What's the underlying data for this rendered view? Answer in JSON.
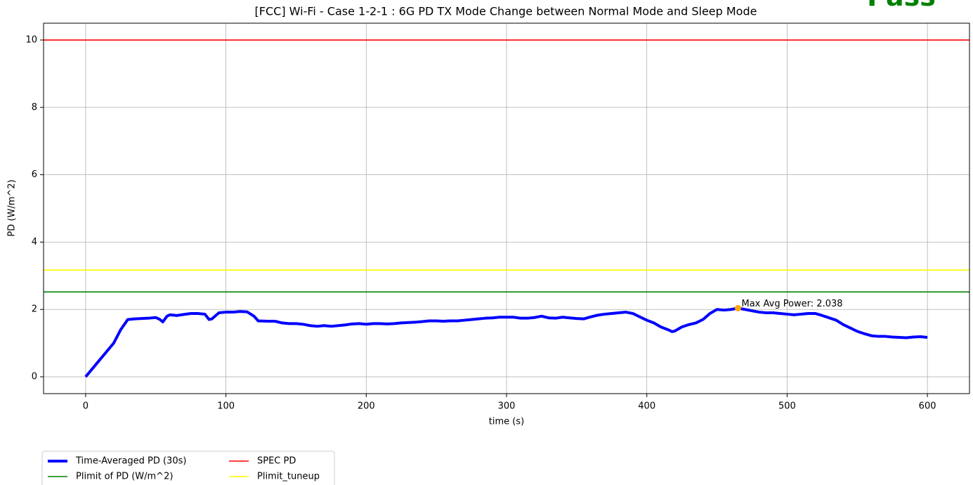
{
  "chart_data": {
    "type": "line",
    "title": "[FCC] Wi-Fi - Case 1-2-1 : 6G PD TX Mode Change between Normal Mode and Sleep Mode",
    "status": {
      "text": "Pass",
      "color": "#008000"
    },
    "xlabel": "time (s)",
    "ylabel": "PD (W/m^2)",
    "x": [
      0,
      5,
      10,
      15,
      20,
      25,
      30,
      35,
      40,
      45,
      50,
      53,
      55,
      58,
      60,
      65,
      70,
      75,
      80,
      85,
      88,
      90,
      95,
      100,
      105,
      110,
      115,
      120,
      123,
      130,
      135,
      140,
      145,
      150,
      155,
      160,
      165,
      170,
      175,
      180,
      185,
      190,
      195,
      200,
      205,
      210,
      215,
      220,
      225,
      230,
      235,
      240,
      245,
      250,
      255,
      260,
      265,
      270,
      275,
      280,
      285,
      290,
      295,
      300,
      305,
      310,
      315,
      320,
      325,
      330,
      335,
      340,
      345,
      350,
      355,
      360,
      365,
      370,
      375,
      380,
      385,
      390,
      395,
      400,
      405,
      410,
      415,
      418,
      420,
      425,
      430,
      435,
      440,
      445,
      450,
      455,
      460,
      465,
      470,
      475,
      480,
      485,
      490,
      495,
      500,
      505,
      510,
      515,
      520,
      525,
      530,
      535,
      540,
      545,
      550,
      555,
      560,
      565,
      570,
      575,
      580,
      585,
      590,
      595,
      600
    ],
    "series": [
      {
        "name": "Time-Averaged PD (30s)",
        "color": "#0000ff",
        "values": [
          0,
          0.25,
          0.5,
          0.75,
          1.0,
          1.4,
          1.7,
          1.72,
          1.73,
          1.74,
          1.76,
          1.7,
          1.63,
          1.8,
          1.84,
          1.82,
          1.85,
          1.88,
          1.88,
          1.86,
          1.7,
          1.72,
          1.9,
          1.92,
          1.92,
          1.94,
          1.93,
          1.8,
          1.66,
          1.65,
          1.65,
          1.6,
          1.58,
          1.58,
          1.56,
          1.52,
          1.5,
          1.52,
          1.5,
          1.52,
          1.54,
          1.57,
          1.58,
          1.56,
          1.58,
          1.58,
          1.57,
          1.58,
          1.6,
          1.61,
          1.62,
          1.64,
          1.66,
          1.66,
          1.65,
          1.66,
          1.66,
          1.68,
          1.7,
          1.72,
          1.74,
          1.75,
          1.77,
          1.77,
          1.77,
          1.74,
          1.74,
          1.76,
          1.8,
          1.75,
          1.74,
          1.77,
          1.75,
          1.73,
          1.72,
          1.78,
          1.83,
          1.86,
          1.88,
          1.9,
          1.92,
          1.88,
          1.78,
          1.68,
          1.6,
          1.48,
          1.4,
          1.34,
          1.36,
          1.48,
          1.55,
          1.6,
          1.7,
          1.88,
          2.0,
          1.98,
          2.0,
          2.038,
          2.0,
          1.96,
          1.92,
          1.9,
          1.9,
          1.88,
          1.86,
          1.84,
          1.86,
          1.88,
          1.88,
          1.82,
          1.75,
          1.68,
          1.55,
          1.45,
          1.35,
          1.28,
          1.22,
          1.2,
          1.2,
          1.18,
          1.17,
          1.16,
          1.18,
          1.19,
          1.17
        ]
      }
    ],
    "hlines": [
      {
        "name": "Plimit of PD (W/m^2)",
        "color": "#008000",
        "value": 2.52
      },
      {
        "name": "SPEC PD",
        "color": "#ff0000",
        "value": 10
      },
      {
        "name": "Plimit_tuneup",
        "color": "#ffff00",
        "value": 3.17
      }
    ],
    "max_point": {
      "x": 465,
      "y": 2.038,
      "color": "#ffa500",
      "label": "Max Avg Power: 2.038"
    },
    "xlim": [
      -30,
      630
    ],
    "ylim": [
      -0.5,
      10.5
    ],
    "xticks": [
      0,
      100,
      200,
      300,
      400,
      500,
      600
    ],
    "yticks": [
      0,
      2,
      4,
      6,
      8,
      10
    ],
    "grid": true,
    "legend": "below-left"
  }
}
